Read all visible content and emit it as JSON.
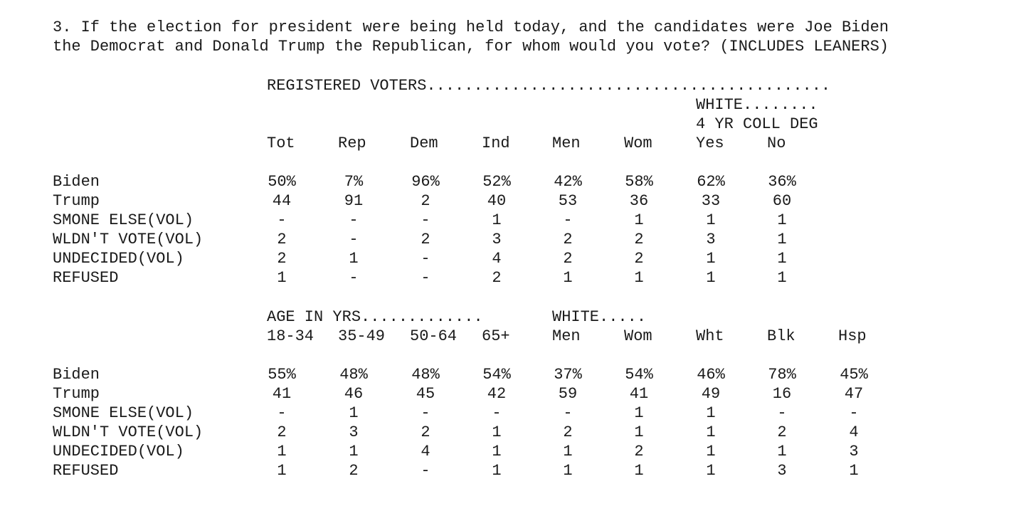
{
  "question": {
    "line1": "3. If the election for president were being held today, and the candidates were Joe Biden",
    "line2": "the Democrat and Donald Trump the Republican, for whom would you vote? (INCLUDES LEANERS)"
  },
  "table1": {
    "group_header": "REGISTERED VOTERS...........................................",
    "white_header": "WHITE........",
    "coll_header": "4 YR COLL DEG",
    "columns": [
      "Tot",
      "Rep",
      "Dem",
      "Ind",
      "Men",
      "Wom",
      "Yes",
      "No"
    ],
    "rows": [
      {
        "label": "Biden",
        "values": [
          "50%",
          "7%",
          "96%",
          "52%",
          "42%",
          "58%",
          "62%",
          "36%"
        ]
      },
      {
        "label": "Trump",
        "values": [
          "44",
          "91",
          "2",
          "40",
          "53",
          "36",
          "33",
          "60"
        ]
      },
      {
        "label": "SMONE ELSE(VOL)",
        "values": [
          "-",
          "-",
          "-",
          "1",
          "-",
          "1",
          "1",
          "1"
        ]
      },
      {
        "label": "WLDN'T VOTE(VOL)",
        "values": [
          "2",
          "-",
          "2",
          "3",
          "2",
          "2",
          "3",
          "1"
        ]
      },
      {
        "label": "UNDECIDED(VOL)",
        "values": [
          "2",
          "1",
          "-",
          "4",
          "2",
          "2",
          "1",
          "1"
        ]
      },
      {
        "label": "REFUSED",
        "values": [
          "1",
          "-",
          "-",
          "2",
          "1",
          "1",
          "1",
          "1"
        ]
      }
    ]
  },
  "table2": {
    "age_header": "AGE IN YRS.............",
    "white_header": "WHITE.....",
    "columns": [
      "18-34",
      "35-49",
      "50-64",
      "65+",
      "Men",
      "Wom",
      "Wht",
      "Blk",
      "Hsp"
    ],
    "rows": [
      {
        "label": "Biden",
        "values": [
          "55%",
          "48%",
          "48%",
          "54%",
          "37%",
          "54%",
          "46%",
          "78%",
          "45%"
        ]
      },
      {
        "label": "Trump",
        "values": [
          "41",
          "46",
          "45",
          "42",
          "59",
          "41",
          "49",
          "16",
          "47"
        ]
      },
      {
        "label": "SMONE ELSE(VOL)",
        "values": [
          "-",
          "1",
          "-",
          "-",
          "-",
          "1",
          "1",
          "-",
          "-"
        ]
      },
      {
        "label": "WLDN'T VOTE(VOL)",
        "values": [
          "2",
          "3",
          "2",
          "1",
          "2",
          "1",
          "1",
          "2",
          "4"
        ]
      },
      {
        "label": "UNDECIDED(VOL)",
        "values": [
          "1",
          "1",
          "4",
          "1",
          "1",
          "2",
          "1",
          "1",
          "3"
        ]
      },
      {
        "label": "REFUSED",
        "values": [
          "1",
          "2",
          "-",
          "1",
          "1",
          "1",
          "1",
          "3",
          "1"
        ]
      }
    ]
  }
}
